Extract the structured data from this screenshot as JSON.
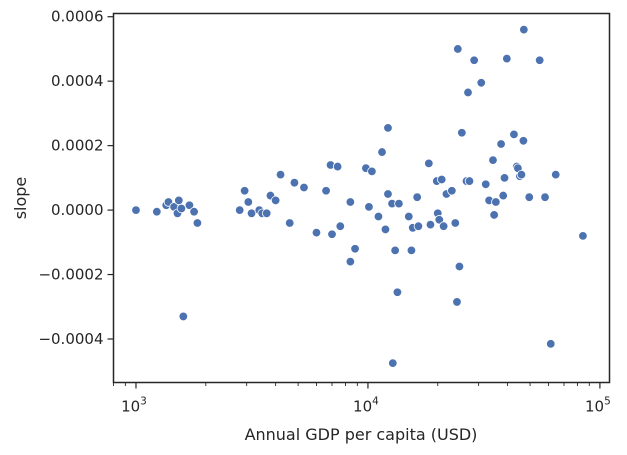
{
  "chart_data": {
    "type": "scatter",
    "title": "",
    "xlabel": "Annual GDP per capita (USD)",
    "ylabel": "slope",
    "xscale": "log",
    "yscale": "linear",
    "xlim": [
      800,
      110000
    ],
    "ylim": [
      -0.000535,
      0.00061
    ],
    "grid": false,
    "legend": "none",
    "x_ticks": [
      {
        "value": 1000,
        "base": "10",
        "exp": "3"
      },
      {
        "value": 10000,
        "base": "10",
        "exp": "4"
      },
      {
        "value": 100000,
        "base": "10",
        "exp": "5"
      }
    ],
    "y_ticks": [
      {
        "value": -0.0004,
        "label": "−0.0004"
      },
      {
        "value": -0.0002,
        "label": "−0.0002"
      },
      {
        "value": 0.0,
        "label": "0.0000"
      },
      {
        "value": 0.0002,
        "label": "0.0002"
      },
      {
        "value": 0.0004,
        "label": "0.0004"
      },
      {
        "value": 0.0006,
        "label": "0.0006"
      }
    ],
    "marker_color": "#4c72b0",
    "series": [
      {
        "points": [
          [
            1000,
            0.0
          ],
          [
            1230,
            -5e-06
          ],
          [
            1350,
            1.5e-05
          ],
          [
            1380,
            2.5e-05
          ],
          [
            1460,
            1e-05
          ],
          [
            1510,
            -1e-05
          ],
          [
            1530,
            3e-05
          ],
          [
            1570,
            5e-06
          ],
          [
            1600,
            -0.00033
          ],
          [
            1700,
            1.5e-05
          ],
          [
            1780,
            -5e-06
          ],
          [
            1840,
            -4e-05
          ],
          [
            2800,
            0.0
          ],
          [
            2940,
            6e-05
          ],
          [
            3050,
            2.5e-05
          ],
          [
            3150,
            -1e-05
          ],
          [
            3400,
            0.0
          ],
          [
            3500,
            -1e-05
          ],
          [
            3660,
            -1e-05
          ],
          [
            3800,
            4.5e-05
          ],
          [
            4000,
            3e-05
          ],
          [
            4200,
            0.00011
          ],
          [
            4600,
            -4e-05
          ],
          [
            4820,
            8.5e-05
          ],
          [
            5300,
            7e-05
          ],
          [
            6000,
            -7e-05
          ],
          [
            6600,
            6e-05
          ],
          [
            6900,
            0.00014
          ],
          [
            7000,
            -7.5e-05
          ],
          [
            7400,
            0.000135
          ],
          [
            7600,
            -5e-05
          ],
          [
            8400,
            2.5e-05
          ],
          [
            8400,
            -0.00016
          ],
          [
            8800,
            -0.00012
          ],
          [
            9800,
            0.00013
          ],
          [
            10100,
            1e-05
          ],
          [
            10400,
            0.00012
          ],
          [
            11100,
            -2e-05
          ],
          [
            11500,
            0.00018
          ],
          [
            11900,
            -6e-05
          ],
          [
            12200,
            5e-05
          ],
          [
            12200,
            0.000255
          ],
          [
            12700,
            2e-05
          ],
          [
            12800,
            -0.000475
          ],
          [
            13100,
            -0.000125
          ],
          [
            13400,
            -0.000255
          ],
          [
            13600,
            2e-05
          ],
          [
            15000,
            -2e-05
          ],
          [
            15400,
            -0.000125
          ],
          [
            15600,
            -5.5e-05
          ],
          [
            16300,
            4e-05
          ],
          [
            16500,
            -5e-05
          ],
          [
            18300,
            0.000145
          ],
          [
            18600,
            -4.5e-05
          ],
          [
            19800,
            9e-05
          ],
          [
            20000,
            -1e-05
          ],
          [
            20300,
            -3e-05
          ],
          [
            20800,
            9.5e-05
          ],
          [
            21200,
            -5e-05
          ],
          [
            21800,
            5e-05
          ],
          [
            23000,
            6e-05
          ],
          [
            23800,
            -4e-05
          ],
          [
            24200,
            -0.000285
          ],
          [
            24400,
            0.0005
          ],
          [
            24800,
            -0.000175
          ],
          [
            25400,
            0.00024
          ],
          [
            26600,
            9e-05
          ],
          [
            27000,
            0.000365
          ],
          [
            27400,
            9e-05
          ],
          [
            28700,
            0.000465
          ],
          [
            30800,
            0.000395
          ],
          [
            32200,
            8e-05
          ],
          [
            33300,
            3e-05
          ],
          [
            34600,
            0.000155
          ],
          [
            35000,
            -1.5e-05
          ],
          [
            35600,
            2.5e-05
          ],
          [
            37500,
            0.000205
          ],
          [
            38300,
            4.5e-05
          ],
          [
            38800,
            0.0001
          ],
          [
            39700,
            0.00047
          ],
          [
            42600,
            0.000235
          ],
          [
            43800,
            0.000135
          ],
          [
            44300,
            0.00013
          ],
          [
            45200,
            0.000105
          ],
          [
            45900,
            0.00011
          ],
          [
            46800,
            0.000215
          ],
          [
            47000,
            0.00056
          ],
          [
            49600,
            4e-05
          ],
          [
            55000,
            0.000465
          ],
          [
            58000,
            4e-05
          ],
          [
            61400,
            -0.000415
          ],
          [
            64500,
            0.00011
          ],
          [
            84500,
            -8e-05
          ]
        ]
      }
    ]
  }
}
